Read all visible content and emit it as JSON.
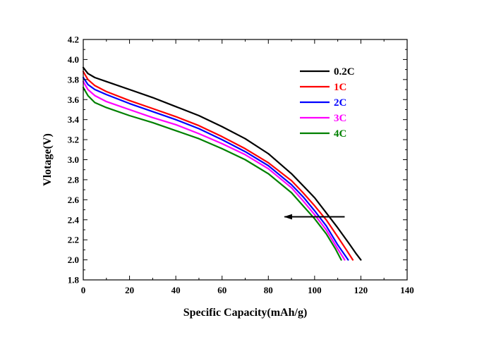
{
  "chart_data": {
    "type": "line",
    "xlabel": "Specific Capacity(mAh/g)",
    "ylabel": "Vlotage(V)",
    "xlim": [
      0,
      140
    ],
    "ylim": [
      1.8,
      4.2
    ],
    "xticks": [
      "0",
      "20",
      "40",
      "60",
      "80",
      "100",
      "120",
      "140"
    ],
    "yticks": [
      "1.8",
      "2.0",
      "2.2",
      "2.4",
      "2.6",
      "2.8",
      "3.0",
      "3.2",
      "3.4",
      "3.6",
      "3.8",
      "4.0",
      "4.2"
    ],
    "grid": false,
    "legend_position": "top-right",
    "annotation": {
      "type": "arrow",
      "from": [
        113,
        2.43
      ],
      "to": [
        87,
        2.43
      ]
    },
    "series": [
      {
        "name": "0.2C",
        "color": "#000000",
        "x": [
          0,
          2,
          5,
          10,
          20,
          30,
          40,
          50,
          60,
          70,
          80,
          90,
          95,
          100,
          105,
          110,
          115,
          118,
          120
        ],
        "y": [
          3.92,
          3.86,
          3.82,
          3.78,
          3.7,
          3.62,
          3.53,
          3.44,
          3.33,
          3.21,
          3.06,
          2.86,
          2.74,
          2.62,
          2.47,
          2.32,
          2.16,
          2.06,
          2.0
        ]
      },
      {
        "name": "1C",
        "color": "#ff0000",
        "x": [
          0,
          2,
          5,
          10,
          20,
          30,
          40,
          50,
          60,
          70,
          80,
          90,
          95,
          100,
          105,
          110,
          114,
          116.5
        ],
        "y": [
          3.88,
          3.8,
          3.74,
          3.68,
          3.59,
          3.51,
          3.43,
          3.34,
          3.23,
          3.11,
          2.97,
          2.79,
          2.67,
          2.54,
          2.4,
          2.23,
          2.09,
          2.0
        ]
      },
      {
        "name": "2C",
        "color": "#0000ff",
        "x": [
          0,
          2,
          5,
          10,
          20,
          30,
          40,
          50,
          60,
          70,
          80,
          90,
          95,
          100,
          105,
          110,
          113,
          114.5
        ],
        "y": [
          3.82,
          3.75,
          3.7,
          3.65,
          3.56,
          3.48,
          3.4,
          3.31,
          3.2,
          3.08,
          2.94,
          2.75,
          2.63,
          2.49,
          2.34,
          2.15,
          2.05,
          2.0
        ]
      },
      {
        "name": "3C",
        "color": "#ff00ff",
        "x": [
          0,
          2,
          5,
          10,
          20,
          30,
          40,
          50,
          60,
          70,
          80,
          90,
          95,
          100,
          105,
          110,
          113
        ],
        "y": [
          3.78,
          3.7,
          3.64,
          3.58,
          3.5,
          3.42,
          3.35,
          3.26,
          3.16,
          3.05,
          2.91,
          2.72,
          2.59,
          2.45,
          2.3,
          2.11,
          2.0
        ]
      },
      {
        "name": "4C",
        "color": "#008000",
        "x": [
          0,
          2,
          5,
          10,
          20,
          30,
          40,
          50,
          60,
          70,
          80,
          90,
          95,
          100,
          105,
          109,
          111.5
        ],
        "y": [
          3.72,
          3.64,
          3.57,
          3.52,
          3.44,
          3.37,
          3.29,
          3.21,
          3.11,
          3.0,
          2.86,
          2.67,
          2.54,
          2.41,
          2.26,
          2.11,
          2.0
        ]
      }
    ]
  }
}
